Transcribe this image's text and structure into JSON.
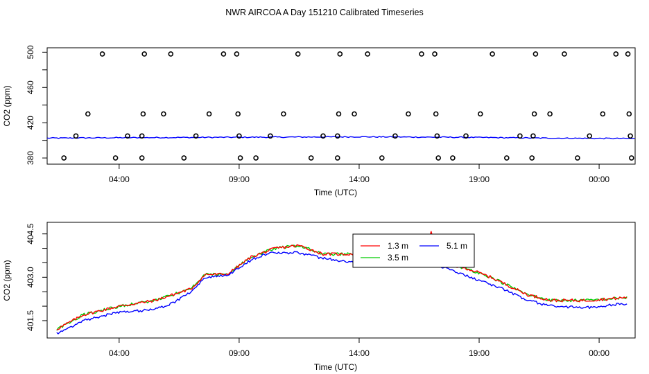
{
  "figure": {
    "title": "NWR AIRCOA A  Day 151210  Calibrated Timeseries"
  },
  "chart_data": [
    {
      "type": "scatter",
      "title": "NWR AIRCOA A  Day 151210  Calibrated Timeseries",
      "xlabel": "Time (UTC)",
      "ylabel": "CO2 (ppm)",
      "x_unit": "hours since 00:00 UTC",
      "xlim": [
        1.0,
        25.5
      ],
      "ylim": [
        373,
        505
      ],
      "x_ticks": [
        {
          "v": 4,
          "label": "04:00"
        },
        {
          "v": 9,
          "label": "09:00"
        },
        {
          "v": 14,
          "label": "14:00"
        },
        {
          "v": 19,
          "label": "19:00"
        },
        {
          "v": 24,
          "label": "00:00"
        }
      ],
      "y_ticks": [
        {
          "v": 380,
          "label": "380",
          "labeled": true
        },
        {
          "v": 400,
          "label": "",
          "labeled": false
        },
        {
          "v": 420,
          "label": "420",
          "labeled": true
        },
        {
          "v": 440,
          "label": "",
          "labeled": false
        },
        {
          "v": 460,
          "label": "460",
          "labeled": true
        },
        {
          "v": 480,
          "label": "",
          "labeled": false
        },
        {
          "v": 500,
          "label": "500",
          "labeled": true
        }
      ],
      "points": [
        {
          "x": 1.7,
          "y": 380
        },
        {
          "x": 2.2,
          "y": 405
        },
        {
          "x": 2.7,
          "y": 430
        },
        {
          "x": 3.3,
          "y": 498
        },
        {
          "x": 3.85,
          "y": 380
        },
        {
          "x": 4.35,
          "y": 405
        },
        {
          "x": 4.95,
          "y": 380
        },
        {
          "x": 4.95,
          "y": 405
        },
        {
          "x": 5.0,
          "y": 430
        },
        {
          "x": 5.05,
          "y": 498
        },
        {
          "x": 5.85,
          "y": 430
        },
        {
          "x": 6.15,
          "y": 498
        },
        {
          "x": 6.7,
          "y": 380
        },
        {
          "x": 7.2,
          "y": 405
        },
        {
          "x": 7.75,
          "y": 430
        },
        {
          "x": 8.35,
          "y": 498
        },
        {
          "x": 8.9,
          "y": 498
        },
        {
          "x": 8.95,
          "y": 430
        },
        {
          "x": 9.0,
          "y": 405
        },
        {
          "x": 9.05,
          "y": 380
        },
        {
          "x": 9.7,
          "y": 380
        },
        {
          "x": 10.3,
          "y": 405
        },
        {
          "x": 10.85,
          "y": 430
        },
        {
          "x": 11.45,
          "y": 498
        },
        {
          "x": 12.0,
          "y": 380
        },
        {
          "x": 12.5,
          "y": 405
        },
        {
          "x": 13.1,
          "y": 380
        },
        {
          "x": 13.1,
          "y": 405
        },
        {
          "x": 13.15,
          "y": 430
        },
        {
          "x": 13.2,
          "y": 498
        },
        {
          "x": 13.8,
          "y": 430
        },
        {
          "x": 14.35,
          "y": 498
        },
        {
          "x": 14.95,
          "y": 380
        },
        {
          "x": 15.5,
          "y": 405
        },
        {
          "x": 16.05,
          "y": 430
        },
        {
          "x": 16.6,
          "y": 498
        },
        {
          "x": 17.15,
          "y": 498
        },
        {
          "x": 17.2,
          "y": 430
        },
        {
          "x": 17.25,
          "y": 405
        },
        {
          "x": 17.3,
          "y": 380
        },
        {
          "x": 17.9,
          "y": 380
        },
        {
          "x": 18.45,
          "y": 405
        },
        {
          "x": 19.05,
          "y": 430
        },
        {
          "x": 19.55,
          "y": 498
        },
        {
          "x": 20.15,
          "y": 380
        },
        {
          "x": 20.7,
          "y": 405
        },
        {
          "x": 21.2,
          "y": 380
        },
        {
          "x": 21.25,
          "y": 405
        },
        {
          "x": 21.3,
          "y": 430
        },
        {
          "x": 21.35,
          "y": 498
        },
        {
          "x": 21.95,
          "y": 430
        },
        {
          "x": 22.55,
          "y": 498
        },
        {
          "x": 23.1,
          "y": 380
        },
        {
          "x": 23.6,
          "y": 405
        },
        {
          "x": 24.15,
          "y": 430
        },
        {
          "x": 24.7,
          "y": 498
        },
        {
          "x": 25.2,
          "y": 498
        },
        {
          "x": 25.25,
          "y": 430
        },
        {
          "x": 25.3,
          "y": 405
        },
        {
          "x": 25.35,
          "y": 380
        }
      ],
      "series": [
        {
          "name": "blue baseline",
          "color": "#0000ff",
          "x": [
            1.0,
            4.0,
            9.0,
            14.0,
            18.0,
            22.0,
            25.5
          ],
          "y": [
            402.5,
            403.0,
            403.5,
            404.0,
            403.5,
            402.5,
            402.0
          ]
        }
      ]
    },
    {
      "type": "line",
      "xlabel": "Time (UTC)",
      "ylabel": "CO2 (ppm)",
      "x_unit": "hours since 00:00 UTC",
      "xlim": [
        1.0,
        25.5
      ],
      "ylim": [
        400.9,
        404.9
      ],
      "x_ticks": [
        {
          "v": 4,
          "label": "04:00"
        },
        {
          "v": 9,
          "label": "09:00"
        },
        {
          "v": 14,
          "label": "14:00"
        },
        {
          "v": 19,
          "label": "19:00"
        },
        {
          "v": 24,
          "label": "00:00"
        }
      ],
      "y_ticks": [
        {
          "v": 401.5,
          "label": "401.5",
          "labeled": true
        },
        {
          "v": 402.0,
          "label": "",
          "labeled": false
        },
        {
          "v": 402.5,
          "label": "",
          "labeled": false
        },
        {
          "v": 403.0,
          "label": "403.0",
          "labeled": true
        },
        {
          "v": 403.5,
          "label": "",
          "labeled": false
        },
        {
          "v": 404.0,
          "label": "",
          "labeled": false
        },
        {
          "v": 404.5,
          "label": "404.5",
          "labeled": true
        }
      ],
      "legend": {
        "position": "top-center",
        "entries": [
          "1.3 m",
          "3.5 m",
          "5.1 m"
        ]
      },
      "series": [
        {
          "name": "1.3 m",
          "color": "#ff0000",
          "x": [
            1.4,
            2.5,
            4.0,
            5.5,
            7.0,
            7.6,
            8.5,
            9.5,
            10.5,
            11.5,
            12.5,
            14.0,
            15.5,
            16.8,
            17.0,
            17.1,
            17.2,
            17.4,
            18.5,
            19.5,
            20.0,
            21.0,
            22.0,
            23.5,
            25.2
          ],
          "y": [
            401.2,
            401.7,
            402.0,
            402.2,
            402.6,
            403.1,
            403.1,
            403.7,
            404.0,
            404.1,
            403.8,
            403.8,
            403.6,
            403.8,
            404.6,
            404.3,
            403.6,
            403.5,
            403.3,
            403.0,
            402.8,
            402.4,
            402.2,
            402.2,
            402.3
          ],
          "noise": 0.05
        },
        {
          "name": "3.5 m",
          "color": "#00cc00",
          "x": [
            1.4,
            2.5,
            4.0,
            5.5,
            7.0,
            7.6,
            8.5,
            9.5,
            10.5,
            11.5,
            12.5,
            14.0,
            15.5,
            17.0,
            17.4,
            18.5,
            19.5,
            20.0,
            21.0,
            22.0,
            23.5,
            25.2
          ],
          "y": [
            401.2,
            401.7,
            402.0,
            402.2,
            402.6,
            403.1,
            403.1,
            403.7,
            404.0,
            404.1,
            403.8,
            403.8,
            403.6,
            403.7,
            403.5,
            403.3,
            403.0,
            402.8,
            402.4,
            402.2,
            402.2,
            402.3
          ],
          "noise": 0.05
        },
        {
          "name": "5.1 m",
          "color": "#0000ff",
          "x": [
            1.4,
            2.5,
            4.0,
            5.0,
            6.0,
            7.0,
            7.6,
            8.5,
            9.5,
            10.3,
            11.5,
            12.5,
            14.0,
            15.5,
            17.0,
            18.5,
            19.0,
            20.0,
            21.0,
            22.0,
            23.5,
            25.2
          ],
          "y": [
            401.05,
            401.5,
            401.8,
            401.85,
            402.0,
            402.5,
            403.0,
            403.05,
            403.6,
            403.85,
            403.85,
            403.65,
            403.5,
            403.4,
            403.5,
            403.05,
            402.9,
            402.6,
            402.2,
            402.0,
            401.95,
            402.1
          ],
          "noise": 0.045
        }
      ]
    }
  ]
}
